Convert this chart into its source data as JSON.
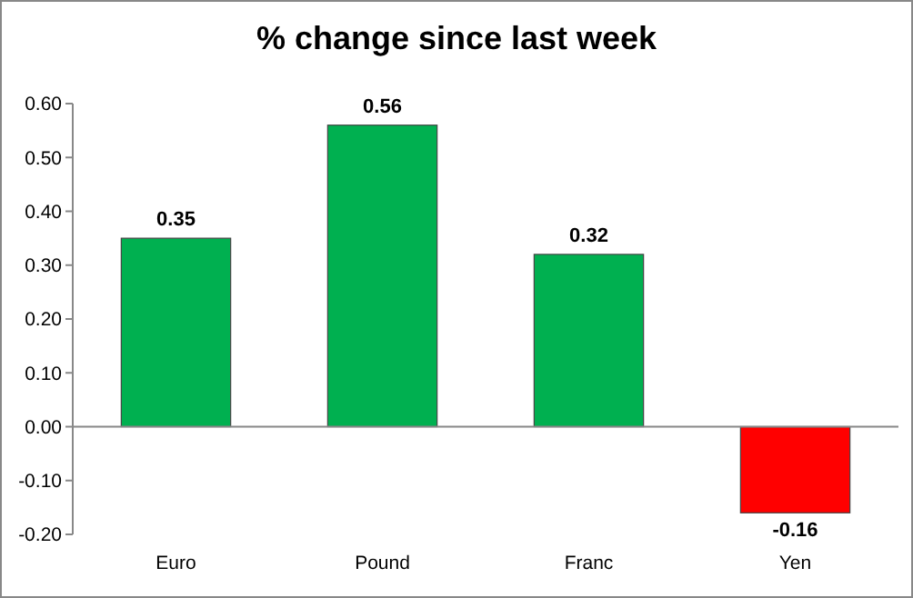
{
  "chart_data": {
    "type": "bar",
    "title": "% change since last week",
    "categories": [
      "Euro",
      "Pound",
      "Franc",
      "Yen"
    ],
    "values": [
      0.35,
      0.56,
      0.32,
      -0.16
    ],
    "colors": [
      "#00b050",
      "#00b050",
      "#00b050",
      "#ff0000"
    ],
    "ylim": [
      -0.2,
      0.6
    ],
    "yticks": [
      {
        "value": -0.2,
        "label": "-0.20"
      },
      {
        "value": -0.1,
        "label": "-0.10"
      },
      {
        "value": 0,
        "label": "0.00"
      },
      {
        "value": 0.1,
        "label": "0.10"
      },
      {
        "value": 0.2,
        "label": "0.20"
      },
      {
        "value": 0.3,
        "label": "0.30"
      },
      {
        "value": 0.4,
        "label": "0.40"
      },
      {
        "value": 0.5,
        "label": "0.50"
      },
      {
        "value": 0.6,
        "label": "0.60"
      }
    ],
    "data_labels": true
  }
}
